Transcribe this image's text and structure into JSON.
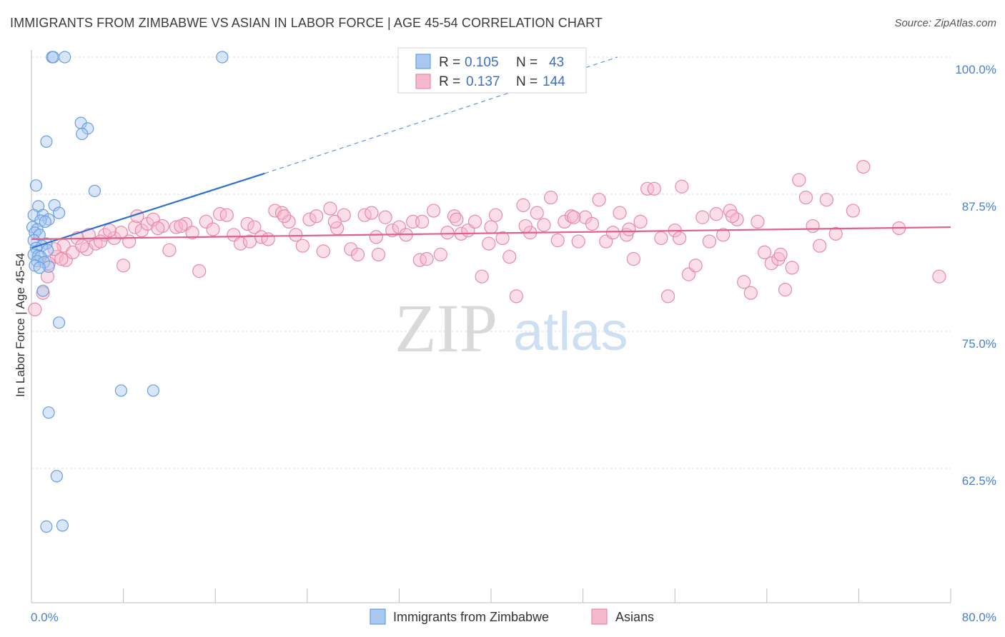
{
  "title": "IMMIGRANTS FROM ZIMBABWE VS ASIAN IN LABOR FORCE | AGE 45-54 CORRELATION CHART",
  "source": "Source: ZipAtlas.com",
  "watermark": {
    "zip": "ZIP",
    "atlas": "atlas"
  },
  "colors": {
    "blue_fill": "#a8c8f0",
    "blue_stroke": "#6a9ee0",
    "blue_line": "#2f6fd0",
    "pink_fill": "#f6b8cc",
    "pink_stroke": "#e88aa8",
    "pink_line": "#e0608a",
    "tick_text": "#4a7fd0",
    "grid": "#dcdcdc"
  },
  "legend": {
    "rows": [
      {
        "r_label": "R =",
        "r_value": "0.105",
        "n_label": "N =",
        "n_value": "43"
      },
      {
        "r_label": "R =",
        "r_value": "0.137",
        "n_label": "N =",
        "n_value": "144"
      }
    ]
  },
  "chart_data": {
    "type": "scatter",
    "title": "IMMIGRANTS FROM ZIMBABWE VS ASIAN IN LABOR FORCE | AGE 45-54 CORRELATION CHART",
    "xlabel": "",
    "ylabel": "In Labor Force | Age 45-54",
    "xlim": [
      0,
      80
    ],
    "ylim": [
      50,
      104
    ],
    "x_tick_labels": [
      "0.0%",
      "80.0%"
    ],
    "y_ticks": [
      100,
      87.5,
      75,
      62.5
    ],
    "y_tick_labels": [
      "100.0%",
      "87.5%",
      "75.0%",
      "62.5%"
    ],
    "grid": true,
    "legend_position": "top-center",
    "series": [
      {
        "name": "Immigrants from Zimbabwe",
        "color": "#a8c8f0",
        "r": 0.105,
        "n": 43,
        "trend": {
          "x0": 0,
          "y0": 82.6,
          "x1": 20.3,
          "y1": 89.4,
          "dashed_to_x": 51,
          "dashed_to_y": 100
        },
        "points": [
          [
            1.8,
            100
          ],
          [
            1.9,
            100
          ],
          [
            2.9,
            100
          ],
          [
            16.6,
            100
          ],
          [
            4.3,
            94
          ],
          [
            4.9,
            93.5
          ],
          [
            4.4,
            93
          ],
          [
            1.3,
            92.3
          ],
          [
            0.4,
            88.3
          ],
          [
            5.5,
            87.8
          ],
          [
            2.0,
            86.5
          ],
          [
            0.6,
            86.4
          ],
          [
            2.4,
            85.8
          ],
          [
            0.2,
            85.6
          ],
          [
            1.0,
            85.6
          ],
          [
            1.5,
            85.2
          ],
          [
            0.8,
            85.1
          ],
          [
            1.2,
            85.0
          ],
          [
            0.1,
            84.5
          ],
          [
            0.5,
            84.3
          ],
          [
            0.3,
            84.0
          ],
          [
            0.7,
            83.8
          ],
          [
            0.2,
            83.3
          ],
          [
            1.3,
            83.0
          ],
          [
            0.9,
            82.8
          ],
          [
            0.4,
            82.6
          ],
          [
            1.4,
            82.4
          ],
          [
            0.2,
            82.0
          ],
          [
            0.6,
            81.9
          ],
          [
            0.8,
            81.8
          ],
          [
            0.5,
            81.4
          ],
          [
            1.1,
            81.3
          ],
          [
            0.3,
            81.0
          ],
          [
            1.5,
            80.9
          ],
          [
            0.7,
            80.8
          ],
          [
            1.0,
            78.7
          ],
          [
            2.4,
            75.8
          ],
          [
            7.8,
            69.6
          ],
          [
            10.6,
            69.6
          ],
          [
            1.5,
            67.6
          ],
          [
            2.2,
            61.8
          ],
          [
            1.3,
            57.2
          ],
          [
            2.7,
            57.3
          ]
        ]
      },
      {
        "name": "Asians",
        "color": "#f6b8cc",
        "r": 0.137,
        "n": 144,
        "trend": {
          "x0": 0,
          "y0": 83.4,
          "x1": 80,
          "y1": 84.5
        },
        "points": [
          [
            0.3,
            77
          ],
          [
            1.0,
            78.5
          ],
          [
            1.4,
            80
          ],
          [
            2.2,
            81.8
          ],
          [
            2.8,
            82.8
          ],
          [
            4.0,
            83.5
          ],
          [
            4.8,
            82.5
          ],
          [
            5.6,
            83.0
          ],
          [
            3.0,
            81.5
          ],
          [
            6.4,
            83.8
          ],
          [
            7.2,
            83.5
          ],
          [
            7.8,
            84.0
          ],
          [
            8.5,
            83.2
          ],
          [
            8.0,
            81.0
          ],
          [
            9.0,
            84.5
          ],
          [
            9.6,
            84.2
          ],
          [
            10.1,
            84.8
          ],
          [
            10.6,
            85.2
          ],
          [
            11.4,
            84.6
          ],
          [
            12.0,
            82.4
          ],
          [
            12.6,
            84.5
          ],
          [
            13.4,
            84.8
          ],
          [
            14.0,
            84.0
          ],
          [
            14.6,
            80.5
          ],
          [
            15.2,
            85.0
          ],
          [
            15.8,
            84.3
          ],
          [
            16.4,
            85.7
          ],
          [
            17.0,
            85.6
          ],
          [
            17.6,
            83.8
          ],
          [
            18.2,
            83.0
          ],
          [
            18.8,
            84.8
          ],
          [
            19.4,
            84.5
          ],
          [
            20.0,
            83.6
          ],
          [
            20.6,
            83.4
          ],
          [
            21.2,
            86.0
          ],
          [
            21.8,
            85.8
          ],
          [
            22.4,
            85.0
          ],
          [
            23.0,
            83.8
          ],
          [
            23.6,
            82.8
          ],
          [
            24.2,
            85.2
          ],
          [
            24.8,
            85.5
          ],
          [
            25.4,
            82.3
          ],
          [
            26.0,
            86.2
          ],
          [
            26.6,
            84.4
          ],
          [
            27.2,
            85.6
          ],
          [
            27.8,
            82.5
          ],
          [
            28.4,
            82.0
          ],
          [
            29.0,
            85.6
          ],
          [
            29.6,
            85.8
          ],
          [
            30.2,
            82.0
          ],
          [
            30.8,
            85.4
          ],
          [
            31.4,
            84.2
          ],
          [
            32.0,
            84.5
          ],
          [
            32.6,
            83.8
          ],
          [
            33.2,
            85.0
          ],
          [
            33.8,
            81.5
          ],
          [
            34.4,
            81.6
          ],
          [
            35.0,
            86.0
          ],
          [
            35.6,
            82.0
          ],
          [
            36.2,
            84.0
          ],
          [
            36.8,
            85.5
          ],
          [
            37.4,
            83.9
          ],
          [
            38.0,
            84.2
          ],
          [
            38.6,
            85.0
          ],
          [
            39.2,
            80.0
          ],
          [
            39.8,
            83.0
          ],
          [
            40.4,
            85.6
          ],
          [
            41.0,
            83.5
          ],
          [
            41.6,
            81.8
          ],
          [
            42.2,
            78.2
          ],
          [
            42.8,
            86.5
          ],
          [
            43.4,
            84.0
          ],
          [
            44.0,
            85.8
          ],
          [
            44.6,
            84.7
          ],
          [
            45.2,
            87.2
          ],
          [
            45.8,
            83.3
          ],
          [
            46.4,
            85.0
          ],
          [
            47.0,
            85.5
          ],
          [
            47.6,
            83.2
          ],
          [
            48.2,
            85.4
          ],
          [
            48.8,
            84.8
          ],
          [
            49.4,
            87.0
          ],
          [
            50.0,
            83.2
          ],
          [
            50.6,
            84.0
          ],
          [
            51.2,
            85.8
          ],
          [
            51.8,
            83.8
          ],
          [
            52.4,
            81.6
          ],
          [
            53.0,
            85.0
          ],
          [
            53.6,
            88.0
          ],
          [
            54.2,
            88.0
          ],
          [
            54.8,
            83.5
          ],
          [
            55.4,
            78.2
          ],
          [
            56.0,
            84.2
          ],
          [
            56.6,
            88.2
          ],
          [
            57.2,
            80.2
          ],
          [
            57.8,
            81.0
          ],
          [
            58.4,
            85.4
          ],
          [
            59.0,
            83.2
          ],
          [
            59.6,
            85.7
          ],
          [
            60.2,
            83.8
          ],
          [
            60.8,
            86.0
          ],
          [
            61.4,
            85.2
          ],
          [
            62.0,
            79.5
          ],
          [
            62.6,
            78.5
          ],
          [
            63.2,
            85.0
          ],
          [
            63.8,
            82.2
          ],
          [
            64.4,
            81.2
          ],
          [
            65.0,
            81.6
          ],
          [
            65.6,
            78.8
          ],
          [
            66.2,
            80.8
          ],
          [
            66.8,
            88.8
          ],
          [
            67.4,
            87.2
          ],
          [
            68.0,
            84.6
          ],
          [
            68.6,
            82.8
          ],
          [
            69.2,
            87.0
          ],
          [
            70.0,
            83.9
          ],
          [
            71.5,
            86.0
          ],
          [
            72.4,
            90
          ],
          [
            75.5,
            84.4
          ],
          [
            79.0,
            80.0
          ],
          [
            2.0,
            82.5
          ],
          [
            3.6,
            82.2
          ],
          [
            5.0,
            83.8
          ],
          [
            6.0,
            83.2
          ],
          [
            9.2,
            85.5
          ],
          [
            11.0,
            84.4
          ],
          [
            13.0,
            84.6
          ],
          [
            19.0,
            83.2
          ],
          [
            22.0,
            85.5
          ],
          [
            26.4,
            85.0
          ],
          [
            30.0,
            83.6
          ],
          [
            34.0,
            85.0
          ],
          [
            37.0,
            85.2
          ],
          [
            40.0,
            84.5
          ],
          [
            43.0,
            84.6
          ],
          [
            47.2,
            85.4
          ],
          [
            52.0,
            84.3
          ],
          [
            56.4,
            83.5
          ],
          [
            61.0,
            85.5
          ],
          [
            65.2,
            82.0
          ],
          [
            1.5,
            81.2
          ],
          [
            2.6,
            81.6
          ],
          [
            4.4,
            82.8
          ],
          [
            6.8,
            84.2
          ]
        ]
      }
    ]
  }
}
